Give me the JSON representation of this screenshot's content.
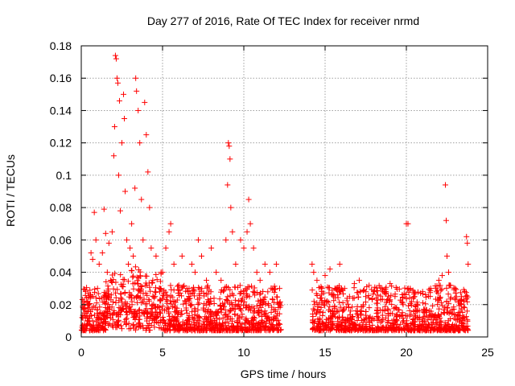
{
  "chart_data": {
    "type": "scatter",
    "title": "Day 277 of 2016, Rate Of TEC Index for receiver nrmd",
    "xlabel": "GPS time / hours",
    "ylabel": "ROTI / TECUs",
    "xlim": [
      0,
      25
    ],
    "ylim": [
      0,
      0.18
    ],
    "grid": true,
    "marker": "+",
    "color": "#ff0000",
    "x_ticks": [
      0,
      5,
      10,
      15,
      20,
      25
    ],
    "x_tick_labels": [
      "0",
      "5",
      "10",
      "15",
      "20",
      "25"
    ],
    "y_ticks": [
      0,
      0.02,
      0.04,
      0.06,
      0.08,
      0.1,
      0.12,
      0.14,
      0.16,
      0.18
    ],
    "y_tick_labels": [
      "0",
      "0.02",
      "0.04",
      "0.06",
      "0.08",
      "0.1",
      "0.12",
      "0.14",
      "0.16",
      "0.18"
    ],
    "series": [
      {
        "name": "nrmd",
        "points": [
          [
            0.05,
            0.012
          ],
          [
            0.2,
            0.008
          ],
          [
            0.3,
            0.016
          ],
          [
            0.4,
            0.022
          ],
          [
            0.5,
            0.018
          ],
          [
            0.6,
            0.025
          ],
          [
            0.7,
            0.01
          ],
          [
            0.6,
            0.052
          ],
          [
            0.7,
            0.048
          ],
          [
            0.8,
            0.077
          ],
          [
            0.9,
            0.06
          ],
          [
            1.0,
            0.03
          ],
          [
            1.1,
            0.045
          ],
          [
            1.2,
            0.015
          ],
          [
            1.3,
            0.052
          ],
          [
            1.4,
            0.079
          ],
          [
            1.5,
            0.064
          ],
          [
            1.6,
            0.04
          ],
          [
            1.7,
            0.058
          ],
          [
            1.8,
            0.035
          ],
          [
            1.9,
            0.065
          ],
          [
            2.0,
            0.112
          ],
          [
            2.05,
            0.13
          ],
          [
            2.1,
            0.174
          ],
          [
            2.15,
            0.172
          ],
          [
            2.2,
            0.16
          ],
          [
            2.25,
            0.157
          ],
          [
            2.3,
            0.1
          ],
          [
            2.35,
            0.146
          ],
          [
            2.4,
            0.078
          ],
          [
            2.5,
            0.12
          ],
          [
            2.6,
            0.15
          ],
          [
            2.65,
            0.135
          ],
          [
            2.7,
            0.09
          ],
          [
            2.8,
            0.06
          ],
          [
            2.9,
            0.045
          ],
          [
            3.0,
            0.055
          ],
          [
            3.1,
            0.07
          ],
          [
            3.2,
            0.05
          ],
          [
            3.3,
            0.092
          ],
          [
            3.35,
            0.16
          ],
          [
            3.4,
            0.152
          ],
          [
            3.5,
            0.14
          ],
          [
            3.6,
            0.12
          ],
          [
            3.7,
            0.085
          ],
          [
            3.8,
            0.06
          ],
          [
            3.9,
            0.145
          ],
          [
            4.0,
            0.125
          ],
          [
            4.1,
            0.102
          ],
          [
            4.2,
            0.08
          ],
          [
            4.3,
            0.055
          ],
          [
            4.4,
            0.035
          ],
          [
            4.6,
            0.05
          ],
          [
            4.8,
            0.03
          ],
          [
            5.0,
            0.04
          ],
          [
            5.2,
            0.055
          ],
          [
            5.4,
            0.065
          ],
          [
            5.5,
            0.07
          ],
          [
            5.7,
            0.045
          ],
          [
            6.0,
            0.032
          ],
          [
            6.2,
            0.05
          ],
          [
            6.5,
            0.03
          ],
          [
            6.8,
            0.045
          ],
          [
            7.0,
            0.04
          ],
          [
            7.2,
            0.06
          ],
          [
            7.4,
            0.05
          ],
          [
            7.7,
            0.035
          ],
          [
            8.0,
            0.055
          ],
          [
            8.3,
            0.04
          ],
          [
            8.6,
            0.035
          ],
          [
            8.9,
            0.06
          ],
          [
            9.0,
            0.094
          ],
          [
            9.05,
            0.12
          ],
          [
            9.1,
            0.118
          ],
          [
            9.15,
            0.11
          ],
          [
            9.2,
            0.08
          ],
          [
            9.3,
            0.065
          ],
          [
            9.5,
            0.045
          ],
          [
            9.8,
            0.06
          ],
          [
            10.0,
            0.055
          ],
          [
            10.2,
            0.065
          ],
          [
            10.3,
            0.085
          ],
          [
            10.4,
            0.07
          ],
          [
            10.6,
            0.055
          ],
          [
            10.8,
            0.04
          ],
          [
            11.0,
            0.035
          ],
          [
            11.3,
            0.045
          ],
          [
            11.6,
            0.04
          ],
          [
            12.0,
            0.045
          ],
          [
            12.2,
            0.03
          ],
          [
            14.2,
            0.045
          ],
          [
            14.3,
            0.04
          ],
          [
            14.5,
            0.035
          ],
          [
            14.8,
            0.03
          ],
          [
            15.0,
            0.038
          ],
          [
            15.3,
            0.042
          ],
          [
            15.6,
            0.03
          ],
          [
            15.9,
            0.045
          ],
          [
            16.2,
            0.03
          ],
          [
            16.5,
            0.025
          ],
          [
            16.8,
            0.033
          ],
          [
            17.1,
            0.035
          ],
          [
            17.5,
            0.025
          ],
          [
            18.0,
            0.028
          ],
          [
            18.5,
            0.03
          ],
          [
            19.0,
            0.033
          ],
          [
            19.3,
            0.025
          ],
          [
            19.8,
            0.02
          ],
          [
            20.0,
            0.07
          ],
          [
            20.1,
            0.07
          ],
          [
            20.5,
            0.025
          ],
          [
            21.0,
            0.028
          ],
          [
            21.5,
            0.03
          ],
          [
            22.0,
            0.035
          ],
          [
            22.2,
            0.038
          ],
          [
            22.4,
            0.094
          ],
          [
            22.45,
            0.072
          ],
          [
            22.5,
            0.05
          ],
          [
            22.6,
            0.04
          ],
          [
            23.0,
            0.03
          ],
          [
            23.4,
            0.025
          ],
          [
            23.7,
            0.062
          ],
          [
            23.75,
            0.058
          ],
          [
            23.8,
            0.045
          ]
        ]
      }
    ]
  }
}
